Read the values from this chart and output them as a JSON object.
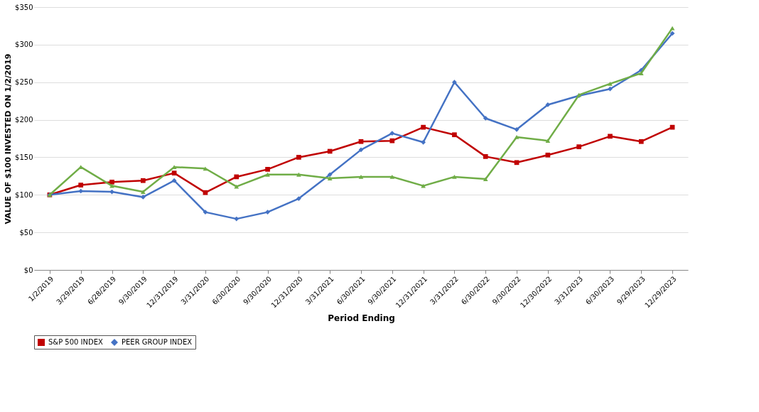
{
  "chart_data": {
    "type": "line",
    "xlabel": "Period Ending",
    "ylabel": "VALUE OF $100 INVESTED ON 1/2/2019",
    "categories": [
      "1/2/2019",
      "3/29/2019",
      "6/28/2019",
      "9/30/2019",
      "12/31/2019",
      "3/31/2020",
      "6/30/2020",
      "9/30/2020",
      "12/31/2020",
      "3/31/2021",
      "6/30/2021",
      "9/30/2021",
      "12/31/2021",
      "3/31/2022",
      "6/30/2022",
      "9/30/2022",
      "12/30/2022",
      "3/31/2023",
      "6/30/2023",
      "9/29/2023",
      "12/29/2023"
    ],
    "series": [
      {
        "name": "S&P 500 INDEX",
        "color": "#c00000",
        "marker": "square",
        "values": [
          100,
          113,
          117,
          119,
          129,
          103,
          124,
          134,
          150,
          158,
          171,
          172,
          190,
          180,
          151,
          143,
          153,
          164,
          178,
          171,
          190
        ]
      },
      {
        "name": "PEER GROUP INDEX",
        "color": "#4472c4",
        "marker": "diamond",
        "values": [
          100,
          105,
          104,
          97,
          119,
          77,
          68,
          77,
          95,
          127,
          160,
          182,
          170,
          250,
          202,
          187,
          220,
          232,
          241,
          266,
          315
        ]
      },
      {
        "color": "#70ad47",
        "marker": "triangle",
        "values": [
          100,
          137,
          112,
          104,
          137,
          135,
          111,
          127,
          127,
          122,
          124,
          124,
          112,
          124,
          121,
          177,
          172,
          233,
          248,
          262,
          322
        ]
      }
    ],
    "ylim": [
      0,
      350
    ],
    "yticks": [
      {
        "value": 0,
        "label": "$0"
      },
      {
        "value": 50,
        "label": "$50"
      },
      {
        "value": 100,
        "label": "$100"
      },
      {
        "value": 150,
        "label": "$150"
      },
      {
        "value": 200,
        "label": "$200"
      },
      {
        "value": 250,
        "label": "$250"
      },
      {
        "value": 300,
        "label": "$300"
      },
      {
        "value": 350,
        "label": "$350"
      }
    ],
    "grid": "y",
    "legend": "bottom"
  }
}
